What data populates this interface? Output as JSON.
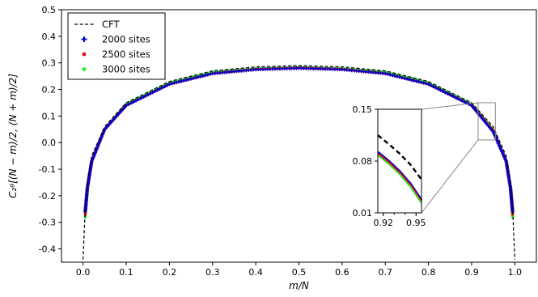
{
  "chart_data": {
    "type": "scatter",
    "xlabel": "m/N",
    "ylabel": "C₂ᵍ[(N − m)/2, (N + m)/2]",
    "xlim": [
      -0.05,
      1.05
    ],
    "ylim": [
      -0.45,
      0.5
    ],
    "x_ticks": [
      "0.0",
      "0.1",
      "0.2",
      "0.3",
      "0.4",
      "0.5",
      "0.6",
      "0.7",
      "0.8",
      "0.9",
      "1.0"
    ],
    "y_ticks": [
      "-0.4",
      "-0.3",
      "-0.2",
      "-0.1",
      "0.0",
      "0.1",
      "0.2",
      "0.3",
      "0.4",
      "0.5"
    ],
    "legend_position": "top-left",
    "x": [
      0.005,
      0.01,
      0.02,
      0.05,
      0.1,
      0.2,
      0.3,
      0.4,
      0.5,
      0.6,
      0.7,
      0.8,
      0.9,
      0.95,
      0.98,
      0.99,
      0.995
    ],
    "series": [
      {
        "name": "CFT",
        "style": "dashed-line",
        "color": "#000000",
        "values": [
          -0.25,
          -0.15,
          -0.05,
          0.06,
          0.15,
          0.23,
          0.27,
          0.285,
          0.29,
          0.285,
          0.27,
          0.23,
          0.15,
          0.06,
          -0.05,
          -0.15,
          -0.25
        ]
      },
      {
        "name": "2000 sites",
        "marker": "plus",
        "color": "#0000cc",
        "values": [
          -0.26,
          -0.17,
          -0.07,
          0.05,
          0.14,
          0.22,
          0.26,
          0.275,
          0.28,
          0.275,
          0.26,
          0.22,
          0.14,
          0.04,
          -0.07,
          -0.17,
          -0.26
        ]
      },
      {
        "name": "2500 sites",
        "marker": "circle",
        "color": "#ee1111",
        "values": [
          -0.27,
          -0.17,
          -0.07,
          0.05,
          0.14,
          0.22,
          0.26,
          0.276,
          0.281,
          0.276,
          0.26,
          0.22,
          0.14,
          0.045,
          -0.07,
          -0.17,
          -0.27
        ]
      },
      {
        "name": "3000 sites",
        "marker": "circle",
        "color": "#22ee22",
        "values": [
          -0.28,
          -0.17,
          -0.07,
          0.05,
          0.145,
          0.225,
          0.265,
          0.278,
          0.283,
          0.278,
          0.265,
          0.225,
          0.145,
          0.047,
          -0.07,
          -0.17,
          -0.28
        ]
      }
    ],
    "inset": {
      "xlim": [
        0.915,
        0.955
      ],
      "ylim": [
        0.01,
        0.15
      ],
      "x_ticks": [
        "0.92",
        "0.95"
      ],
      "y_ticks": [
        "0.15",
        "0.08",
        "0.01"
      ],
      "zoom_region": {
        "x": [
          0.915,
          0.955
        ],
        "y": [
          0.01,
          0.15
        ]
      },
      "cft": [
        [
          0.915,
          0.115
        ],
        [
          0.925,
          0.103
        ],
        [
          0.935,
          0.09
        ],
        [
          0.945,
          0.075
        ],
        [
          0.955,
          0.055
        ]
      ],
      "data": [
        [
          0.915,
          0.09
        ],
        [
          0.925,
          0.078
        ],
        [
          0.935,
          0.064
        ],
        [
          0.945,
          0.047
        ],
        [
          0.955,
          0.025
        ]
      ]
    }
  }
}
